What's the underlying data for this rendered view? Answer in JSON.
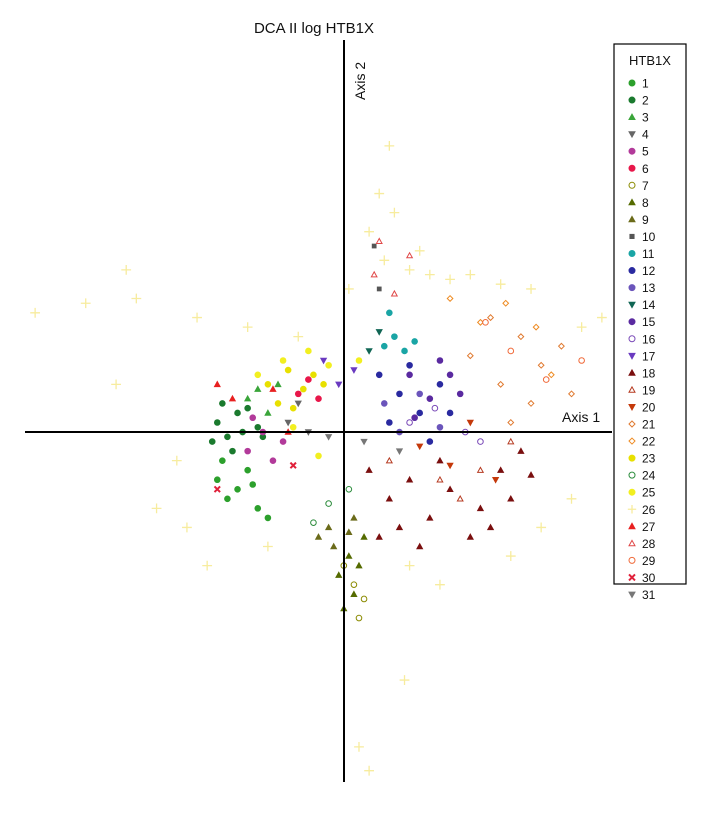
{
  "chart_data": {
    "type": "scatter",
    "title": "DCA II log HTB1X",
    "xlabel": "Axis 1",
    "ylabel": "Axis 2",
    "xlim": [
      -3.2,
      2.6
    ],
    "ylim": [
      -3.6,
      4.0
    ],
    "grid": false,
    "legend": {
      "title": "HTB1X",
      "placement": "right"
    },
    "series": [
      {
        "name": "1",
        "color": "#2ca02c",
        "marker": "circle-filled",
        "points": [
          [
            -1.3,
            -0.4
          ],
          [
            -1.2,
            -0.6
          ],
          [
            -1.1,
            -0.5
          ],
          [
            -0.9,
            -0.7
          ],
          [
            -1.0,
            -0.3
          ],
          [
            -0.8,
            -0.8
          ],
          [
            -1.25,
            -0.2
          ],
          [
            -0.95,
            -0.45
          ]
        ]
      },
      {
        "name": "2",
        "color": "#1b7a2e",
        "marker": "circle-filled",
        "points": [
          [
            -1.3,
            0.2
          ],
          [
            -1.2,
            0.05
          ],
          [
            -1.1,
            0.3
          ],
          [
            -1.05,
            0.1
          ],
          [
            -1.35,
            0.0
          ],
          [
            -1.15,
            -0.1
          ],
          [
            -0.9,
            0.15
          ],
          [
            -1.0,
            0.35
          ],
          [
            -1.25,
            0.4
          ],
          [
            -0.85,
            0.05
          ]
        ]
      },
      {
        "name": "3",
        "color": "#3aa53a",
        "marker": "triangle-filled",
        "points": [
          [
            -1.0,
            0.45
          ],
          [
            -0.8,
            0.3
          ],
          [
            -0.7,
            0.6
          ],
          [
            -0.9,
            0.55
          ]
        ]
      },
      {
        "name": "4",
        "color": "#666666",
        "marker": "triangle-down-filled",
        "points": [
          [
            -0.6,
            0.2
          ],
          [
            -0.5,
            0.4
          ],
          [
            -0.4,
            0.1
          ]
        ]
      },
      {
        "name": "5",
        "color": "#b23a9a",
        "marker": "circle-filled",
        "points": [
          [
            -1.0,
            -0.1
          ],
          [
            -0.85,
            0.1
          ],
          [
            -0.75,
            -0.2
          ],
          [
            -0.65,
            0.0
          ],
          [
            -0.95,
            0.25
          ]
        ]
      },
      {
        "name": "6",
        "color": "#e8174a",
        "marker": "circle-filled",
        "points": [
          [
            -0.5,
            0.5
          ],
          [
            -0.4,
            0.65
          ],
          [
            -0.3,
            0.45
          ]
        ]
      },
      {
        "name": "7",
        "color": "#8a8a00",
        "marker": "circle-open",
        "points": [
          [
            0.05,
            -1.5
          ],
          [
            0.1,
            -1.85
          ],
          [
            -0.05,
            -1.3
          ],
          [
            0.15,
            -1.65
          ]
        ]
      },
      {
        "name": "8",
        "color": "#556b00",
        "marker": "triangle-filled",
        "points": [
          [
            0.0,
            -1.2
          ],
          [
            -0.1,
            -1.4
          ],
          [
            0.05,
            -1.6
          ],
          [
            0.1,
            -1.3
          ],
          [
            -0.05,
            -1.75
          ],
          [
            0.15,
            -1.0
          ]
        ]
      },
      {
        "name": "9",
        "color": "#6b6b1a",
        "marker": "triangle-filled",
        "points": [
          [
            -0.2,
            -0.9
          ],
          [
            -0.3,
            -1.0
          ],
          [
            0.0,
            -0.95
          ],
          [
            -0.15,
            -1.1
          ],
          [
            0.05,
            -0.8
          ]
        ]
      },
      {
        "name": "10",
        "color": "#555555",
        "marker": "square-filled",
        "points": [
          [
            0.25,
            2.05
          ],
          [
            0.3,
            1.6
          ]
        ]
      },
      {
        "name": "11",
        "color": "#1aa5a5",
        "marker": "circle-filled",
        "points": [
          [
            0.35,
            1.0
          ],
          [
            0.45,
            1.1
          ],
          [
            0.55,
            0.95
          ],
          [
            0.4,
            1.35
          ],
          [
            0.65,
            1.05
          ]
        ]
      },
      {
        "name": "12",
        "color": "#2a2aa0",
        "marker": "circle-filled",
        "points": [
          [
            0.3,
            0.7
          ],
          [
            0.5,
            0.5
          ],
          [
            0.7,
            0.3
          ],
          [
            0.9,
            0.6
          ],
          [
            0.4,
            0.2
          ],
          [
            0.8,
            0.0
          ],
          [
            0.6,
            0.8
          ],
          [
            1.0,
            0.3
          ]
        ]
      },
      {
        "name": "13",
        "color": "#6b55bb",
        "marker": "circle-filled",
        "points": [
          [
            0.5,
            0.1
          ],
          [
            0.7,
            0.5
          ],
          [
            0.35,
            0.4
          ],
          [
            0.9,
            0.15
          ]
        ]
      },
      {
        "name": "14",
        "color": "#116655",
        "marker": "triangle-down-filled",
        "points": [
          [
            0.2,
            0.95
          ],
          [
            0.3,
            1.15
          ]
        ]
      },
      {
        "name": "15",
        "color": "#5a2aa0",
        "marker": "circle-filled",
        "points": [
          [
            0.6,
            0.7
          ],
          [
            0.8,
            0.45
          ],
          [
            0.9,
            0.85
          ],
          [
            1.1,
            0.5
          ],
          [
            0.65,
            0.25
          ],
          [
            1.0,
            0.7
          ]
        ]
      },
      {
        "name": "16",
        "color": "#7a4ab8",
        "marker": "circle-open",
        "points": [
          [
            0.6,
            0.2
          ],
          [
            0.85,
            0.35
          ],
          [
            1.15,
            0.1
          ],
          [
            1.3,
            0.0
          ]
        ]
      },
      {
        "name": "17",
        "color": "#6a3ac0",
        "marker": "triangle-down-filled",
        "points": [
          [
            -0.1,
            0.6
          ],
          [
            0.05,
            0.75
          ],
          [
            -0.25,
            0.85
          ]
        ]
      },
      {
        "name": "18",
        "color": "#7a0f0f",
        "marker": "triangle-filled",
        "points": [
          [
            0.2,
            -0.3
          ],
          [
            0.4,
            -0.6
          ],
          [
            0.6,
            -0.4
          ],
          [
            0.8,
            -0.8
          ],
          [
            1.0,
            -0.5
          ],
          [
            1.3,
            -0.7
          ],
          [
            1.5,
            -0.3
          ],
          [
            0.5,
            -0.9
          ],
          [
            0.9,
            -0.2
          ],
          [
            1.2,
            -1.0
          ],
          [
            0.3,
            -1.0
          ],
          [
            1.6,
            -0.6
          ],
          [
            1.7,
            -0.1
          ],
          [
            1.8,
            -0.35
          ],
          [
            1.4,
            -0.9
          ],
          [
            0.7,
            -1.1
          ]
        ]
      },
      {
        "name": "19",
        "color": "#b53a20",
        "marker": "triangle-open",
        "points": [
          [
            0.4,
            -0.2
          ],
          [
            0.9,
            -0.4
          ],
          [
            1.3,
            -0.3
          ],
          [
            1.6,
            0.0
          ],
          [
            1.1,
            -0.6
          ]
        ]
      },
      {
        "name": "20",
        "color": "#c4380a",
        "marker": "triangle-down-filled",
        "points": [
          [
            0.7,
            -0.05
          ],
          [
            1.0,
            -0.25
          ],
          [
            1.2,
            0.2
          ],
          [
            1.45,
            -0.4
          ]
        ]
      },
      {
        "name": "21",
        "color": "#e07a30",
        "marker": "diamond-open",
        "points": [
          [
            1.2,
            0.9
          ],
          [
            1.5,
            0.6
          ],
          [
            1.7,
            1.1
          ],
          [
            1.9,
            0.8
          ],
          [
            2.1,
            1.0
          ],
          [
            1.4,
            1.3
          ],
          [
            1.8,
            0.4
          ],
          [
            2.2,
            0.5
          ],
          [
            1.6,
            0.2
          ]
        ]
      },
      {
        "name": "22",
        "color": "#ee8a20",
        "marker": "diamond-open",
        "points": [
          [
            1.0,
            1.5
          ],
          [
            1.3,
            1.25
          ],
          [
            1.55,
            1.45
          ],
          [
            1.85,
            1.2
          ],
          [
            2.0,
            0.7
          ]
        ]
      },
      {
        "name": "23",
        "color": "#e8e000",
        "marker": "circle-filled",
        "points": [
          [
            -0.8,
            0.6
          ],
          [
            -0.6,
            0.75
          ],
          [
            -0.45,
            0.55
          ],
          [
            -0.7,
            0.4
          ],
          [
            -0.35,
            0.7
          ],
          [
            -0.55,
            0.35
          ],
          [
            -0.25,
            0.6
          ]
        ]
      },
      {
        "name": "24",
        "color": "#2c8c3c",
        "marker": "circle-open",
        "points": [
          [
            -0.35,
            -0.85
          ],
          [
            -0.2,
            -0.65
          ],
          [
            0.0,
            -0.5
          ]
        ]
      },
      {
        "name": "25",
        "color": "#f2ef20",
        "marker": "circle-filled",
        "points": [
          [
            -0.9,
            0.7
          ],
          [
            -0.65,
            0.85
          ],
          [
            -0.4,
            0.95
          ],
          [
            -0.2,
            0.8
          ],
          [
            0.1,
            0.85
          ],
          [
            -0.55,
            0.15
          ],
          [
            -0.3,
            -0.15
          ]
        ]
      },
      {
        "name": "26",
        "color": "#f7ec9e",
        "marker": "plus",
        "points": [
          [
            -3.1,
            1.35
          ],
          [
            -2.6,
            1.45
          ],
          [
            -2.1,
            1.5
          ],
          [
            -1.5,
            1.3
          ],
          [
            -1.0,
            1.2
          ],
          [
            -0.5,
            1.1
          ],
          [
            0.0,
            1.6
          ],
          [
            0.3,
            2.6
          ],
          [
            0.4,
            3.1
          ],
          [
            0.45,
            2.4
          ],
          [
            0.6,
            1.8
          ],
          [
            0.8,
            1.75
          ],
          [
            1.0,
            1.7
          ],
          [
            1.2,
            1.75
          ],
          [
            1.5,
            1.65
          ],
          [
            1.8,
            1.6
          ],
          [
            2.3,
            1.2
          ],
          [
            2.5,
            1.3
          ],
          [
            -2.3,
            0.6
          ],
          [
            -1.7,
            -0.2
          ],
          [
            -1.9,
            -0.7
          ],
          [
            -1.6,
            -0.9
          ],
          [
            -1.4,
            -1.3
          ],
          [
            -0.8,
            -1.1
          ],
          [
            0.6,
            -1.3
          ],
          [
            0.9,
            -1.5
          ],
          [
            1.6,
            -1.2
          ],
          [
            1.9,
            -0.9
          ],
          [
            2.2,
            -0.6
          ],
          [
            0.55,
            -2.5
          ],
          [
            0.1,
            -3.2
          ],
          [
            0.2,
            -3.45
          ],
          [
            -2.2,
            1.8
          ],
          [
            0.7,
            2.0
          ],
          [
            0.2,
            2.2
          ],
          [
            0.35,
            1.9
          ]
        ]
      },
      {
        "name": "27",
        "color": "#e82020",
        "marker": "triangle-filled",
        "points": [
          [
            -1.3,
            0.6
          ],
          [
            -1.15,
            0.45
          ],
          [
            -0.75,
            0.55
          ],
          [
            -0.6,
            0.1
          ]
        ]
      },
      {
        "name": "28",
        "color": "#e04848",
        "marker": "triangle-open",
        "points": [
          [
            0.3,
            2.1
          ],
          [
            0.6,
            1.95
          ],
          [
            0.45,
            1.55
          ],
          [
            0.25,
            1.75
          ]
        ]
      },
      {
        "name": "29",
        "color": "#f06a3a",
        "marker": "circle-open",
        "points": [
          [
            1.35,
            1.25
          ],
          [
            1.6,
            0.95
          ],
          [
            1.95,
            0.65
          ],
          [
            2.3,
            0.85
          ]
        ]
      },
      {
        "name": "30",
        "color": "#e0203a",
        "marker": "x-filled",
        "points": [
          [
            -1.3,
            -0.5
          ],
          [
            -0.55,
            -0.25
          ]
        ]
      },
      {
        "name": "31",
        "color": "#777777",
        "marker": "triangle-down-filled",
        "points": [
          [
            -0.2,
            0.05
          ],
          [
            0.15,
            0.0
          ],
          [
            0.5,
            -0.1
          ]
        ]
      }
    ]
  }
}
